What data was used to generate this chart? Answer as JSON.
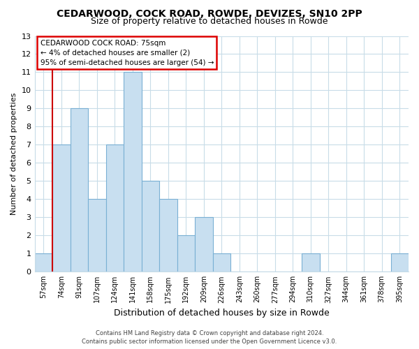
{
  "title": "CEDARWOOD, COCK ROAD, ROWDE, DEVIZES, SN10 2PP",
  "subtitle": "Size of property relative to detached houses in Rowde",
  "xlabel": "Distribution of detached houses by size in Rowde",
  "ylabel": "Number of detached properties",
  "bar_labels": [
    "57sqm",
    "74sqm",
    "91sqm",
    "107sqm",
    "124sqm",
    "141sqm",
    "158sqm",
    "175sqm",
    "192sqm",
    "209sqm",
    "226sqm",
    "243sqm",
    "260sqm",
    "277sqm",
    "294sqm",
    "310sqm",
    "327sqm",
    "344sqm",
    "361sqm",
    "378sqm",
    "395sqm"
  ],
  "bar_values": [
    1,
    7,
    9,
    4,
    7,
    11,
    5,
    4,
    2,
    3,
    1,
    0,
    0,
    0,
    0,
    1,
    0,
    0,
    0,
    0,
    1
  ],
  "bar_color_fill": "#c8dff0",
  "bar_color_edge": "#7ab0d4",
  "ylim": [
    0,
    13
  ],
  "yticks": [
    0,
    1,
    2,
    3,
    4,
    5,
    6,
    7,
    8,
    9,
    10,
    11,
    12,
    13
  ],
  "annotation_title": "CEDARWOOD COCK ROAD: 75sqm",
  "annotation_line1": "← 4% of detached houses are smaller (2)",
  "annotation_line2": "95% of semi-detached houses are larger (54) →",
  "footer1": "Contains HM Land Registry data © Crown copyright and database right 2024.",
  "footer2": "Contains public sector information licensed under the Open Government Licence v3.0.",
  "grid_color": "#c8dce8",
  "background_color": "#ffffff",
  "red_line_color": "#cc0000",
  "annotation_box_color": "#dd0000"
}
